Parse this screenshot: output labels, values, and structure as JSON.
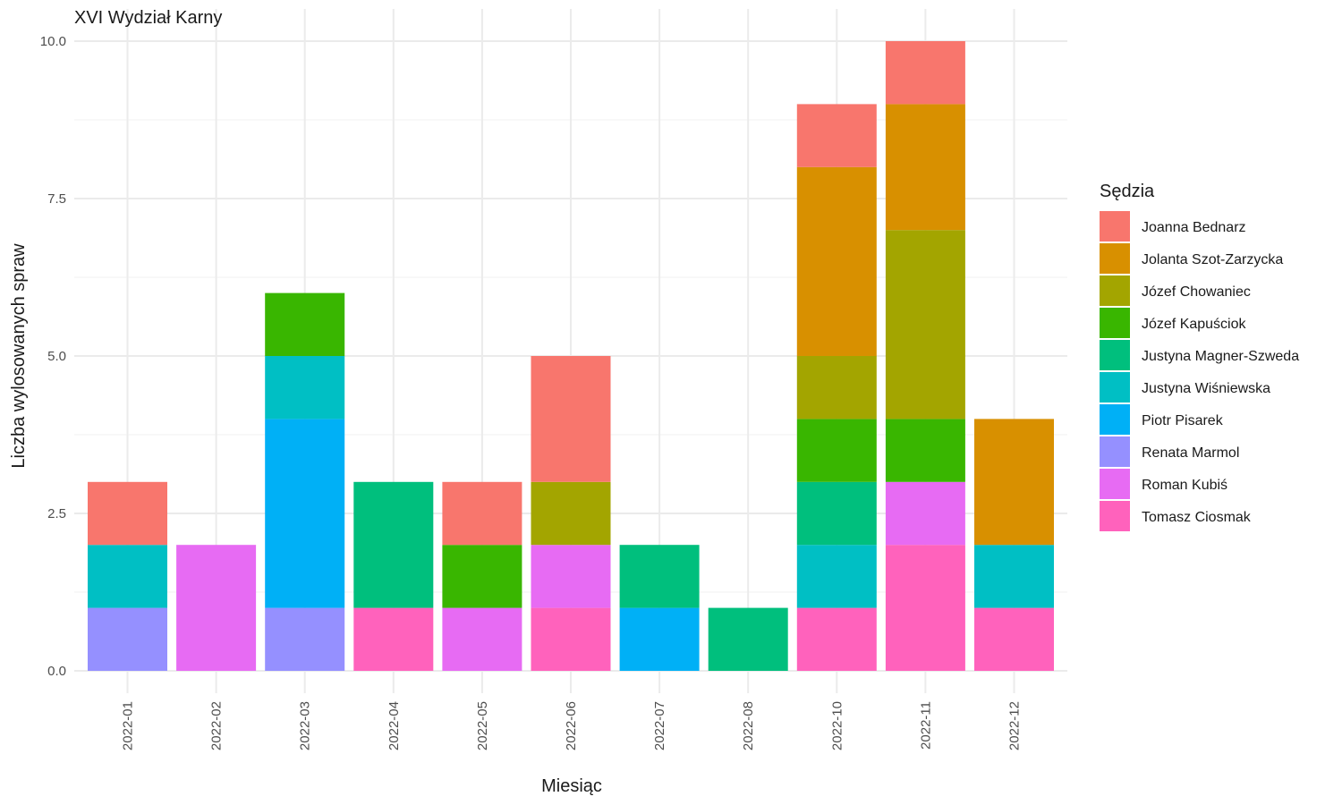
{
  "chart_data": {
    "type": "bar",
    "stacked": true,
    "title": "XVI Wydział Karny",
    "xlabel": "Miesiąc",
    "ylabel": "Liczba wylosowanych spraw",
    "ylim": [
      0,
      10
    ],
    "yticks": [
      "0.0",
      "2.5",
      "5.0",
      "7.5",
      "10.0"
    ],
    "grid": true,
    "legend_position": "right",
    "legend_title": "Sędzia",
    "categories": [
      "2022-01",
      "2022-02",
      "2022-03",
      "2022-04",
      "2022-05",
      "2022-06",
      "2022-07",
      "2022-08",
      "2022-10",
      "2022-11",
      "2022-12"
    ],
    "series": [
      {
        "name": "Joanna Bednarz",
        "color": "#F8766D",
        "values": [
          1,
          0,
          0,
          0,
          1,
          2,
          0,
          0,
          1,
          1,
          0
        ]
      },
      {
        "name": "Jolanta Szot-Zarzycka",
        "color": "#D89000",
        "values": [
          0,
          0,
          0,
          0,
          0,
          0,
          0,
          0,
          3,
          2,
          2
        ]
      },
      {
        "name": "Józef Chowaniec",
        "color": "#A3A500",
        "values": [
          0,
          0,
          0,
          0,
          0,
          1,
          0,
          0,
          1,
          3,
          0
        ]
      },
      {
        "name": "Józef Kapuściok",
        "color": "#39B600",
        "values": [
          0,
          0,
          1,
          0,
          1,
          0,
          0,
          0,
          1,
          1,
          0
        ]
      },
      {
        "name": "Justyna Magner-Szweda",
        "color": "#00BF7D",
        "values": [
          0,
          0,
          0,
          2,
          0,
          0,
          1,
          1,
          1,
          0,
          0
        ]
      },
      {
        "name": "Justyna Wiśniewska",
        "color": "#00BFC4",
        "values": [
          1,
          0,
          1,
          0,
          0,
          0,
          0,
          0,
          1,
          0,
          1
        ]
      },
      {
        "name": "Piotr Pisarek",
        "color": "#00B0F6",
        "values": [
          0,
          0,
          3,
          0,
          0,
          0,
          1,
          0,
          0,
          0,
          0
        ]
      },
      {
        "name": "Renata Marmol",
        "color": "#9590FF",
        "values": [
          1,
          0,
          1,
          0,
          0,
          0,
          0,
          0,
          0,
          0,
          0
        ]
      },
      {
        "name": "Roman Kubiś",
        "color": "#E76BF3",
        "values": [
          0,
          2,
          0,
          0,
          1,
          1,
          0,
          0,
          0,
          1,
          0
        ]
      },
      {
        "name": "Tomasz Ciosmak",
        "color": "#FF62BC",
        "values": [
          0,
          0,
          0,
          1,
          0,
          1,
          0,
          0,
          1,
          2,
          1
        ]
      }
    ]
  }
}
